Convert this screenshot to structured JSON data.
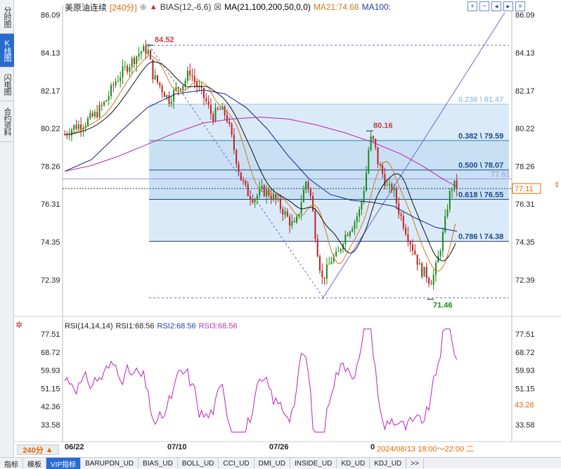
{
  "side_tabs": [
    "分时图",
    "K线图",
    "闪电图",
    "合约资料"
  ],
  "side_active": 1,
  "header": {
    "title": "美原油连续",
    "period": "240分",
    "bias": "BIAS(12,-6,6)",
    "ma": "MA(21,100,200,50,0,0)",
    "ma21": "MA21:74.68",
    "ma100": "MA100:"
  },
  "header_icons": [
    "plus-box-icon",
    "minus-box-icon",
    "arrow-left-box-icon",
    "arrow-right-box-icon",
    "close-box-icon"
  ],
  "price_axis": [
    "86.09",
    "84.13",
    "82.17",
    "80.22",
    "78.26",
    "76.31",
    "74.35",
    "72.39"
  ],
  "price_range": [
    70.6,
    86.6
  ],
  "annotations": {
    "high_label": "84.52",
    "mid_high_label": "80.16",
    "low_label": "71.46"
  },
  "fib": [
    {
      "label": "0.236 \\ 81.47",
      "value": 81.47
    },
    {
      "label": "0.382 \\ 79.59",
      "value": 79.59
    },
    {
      "label": "0.500 \\ 78.07",
      "value": 78.07
    },
    {
      "label": "0.618 \\ 76.55",
      "value": 76.55
    },
    {
      "label": "0.786 \\ 74.38",
      "value": 74.38
    }
  ],
  "price_tags": {
    "ma_right": "77.61",
    "current": "77.11"
  },
  "rsi": {
    "title": "RSI(14,14,14)",
    "rsi1": "RSI1:68.56",
    "rsi2": "RSI2:68.56",
    "rsi3": "RSI3:68.56",
    "axis": [
      "77.51",
      "68.72",
      "59.93",
      "51.15",
      "42.36",
      "33.58"
    ],
    "tag": "43.28"
  },
  "period_button": "240分",
  "dates": [
    "06/22",
    "07/10",
    "07/26",
    "0"
  ],
  "date_info": "2024/08/13 18:00～22:00 二",
  "bottom_tabs": [
    "指标",
    "模板",
    "VIP指标",
    "BARUPDN_UD",
    "BIAS_UD",
    "BOLL_UD",
    "CCI_UD",
    "DMI_UD",
    "INSIDE_UD",
    "KD_UD",
    "KDJ_UD",
    ">>"
  ],
  "bottom_active": 2,
  "colors": {
    "up": "#1a8a1a",
    "down": "#c02020",
    "rsi": "#c020c0",
    "ma21": "#d17a1b",
    "ma100": "#102080",
    "ma200": "#c020b0",
    "fill": "#cfe3f6"
  }
}
